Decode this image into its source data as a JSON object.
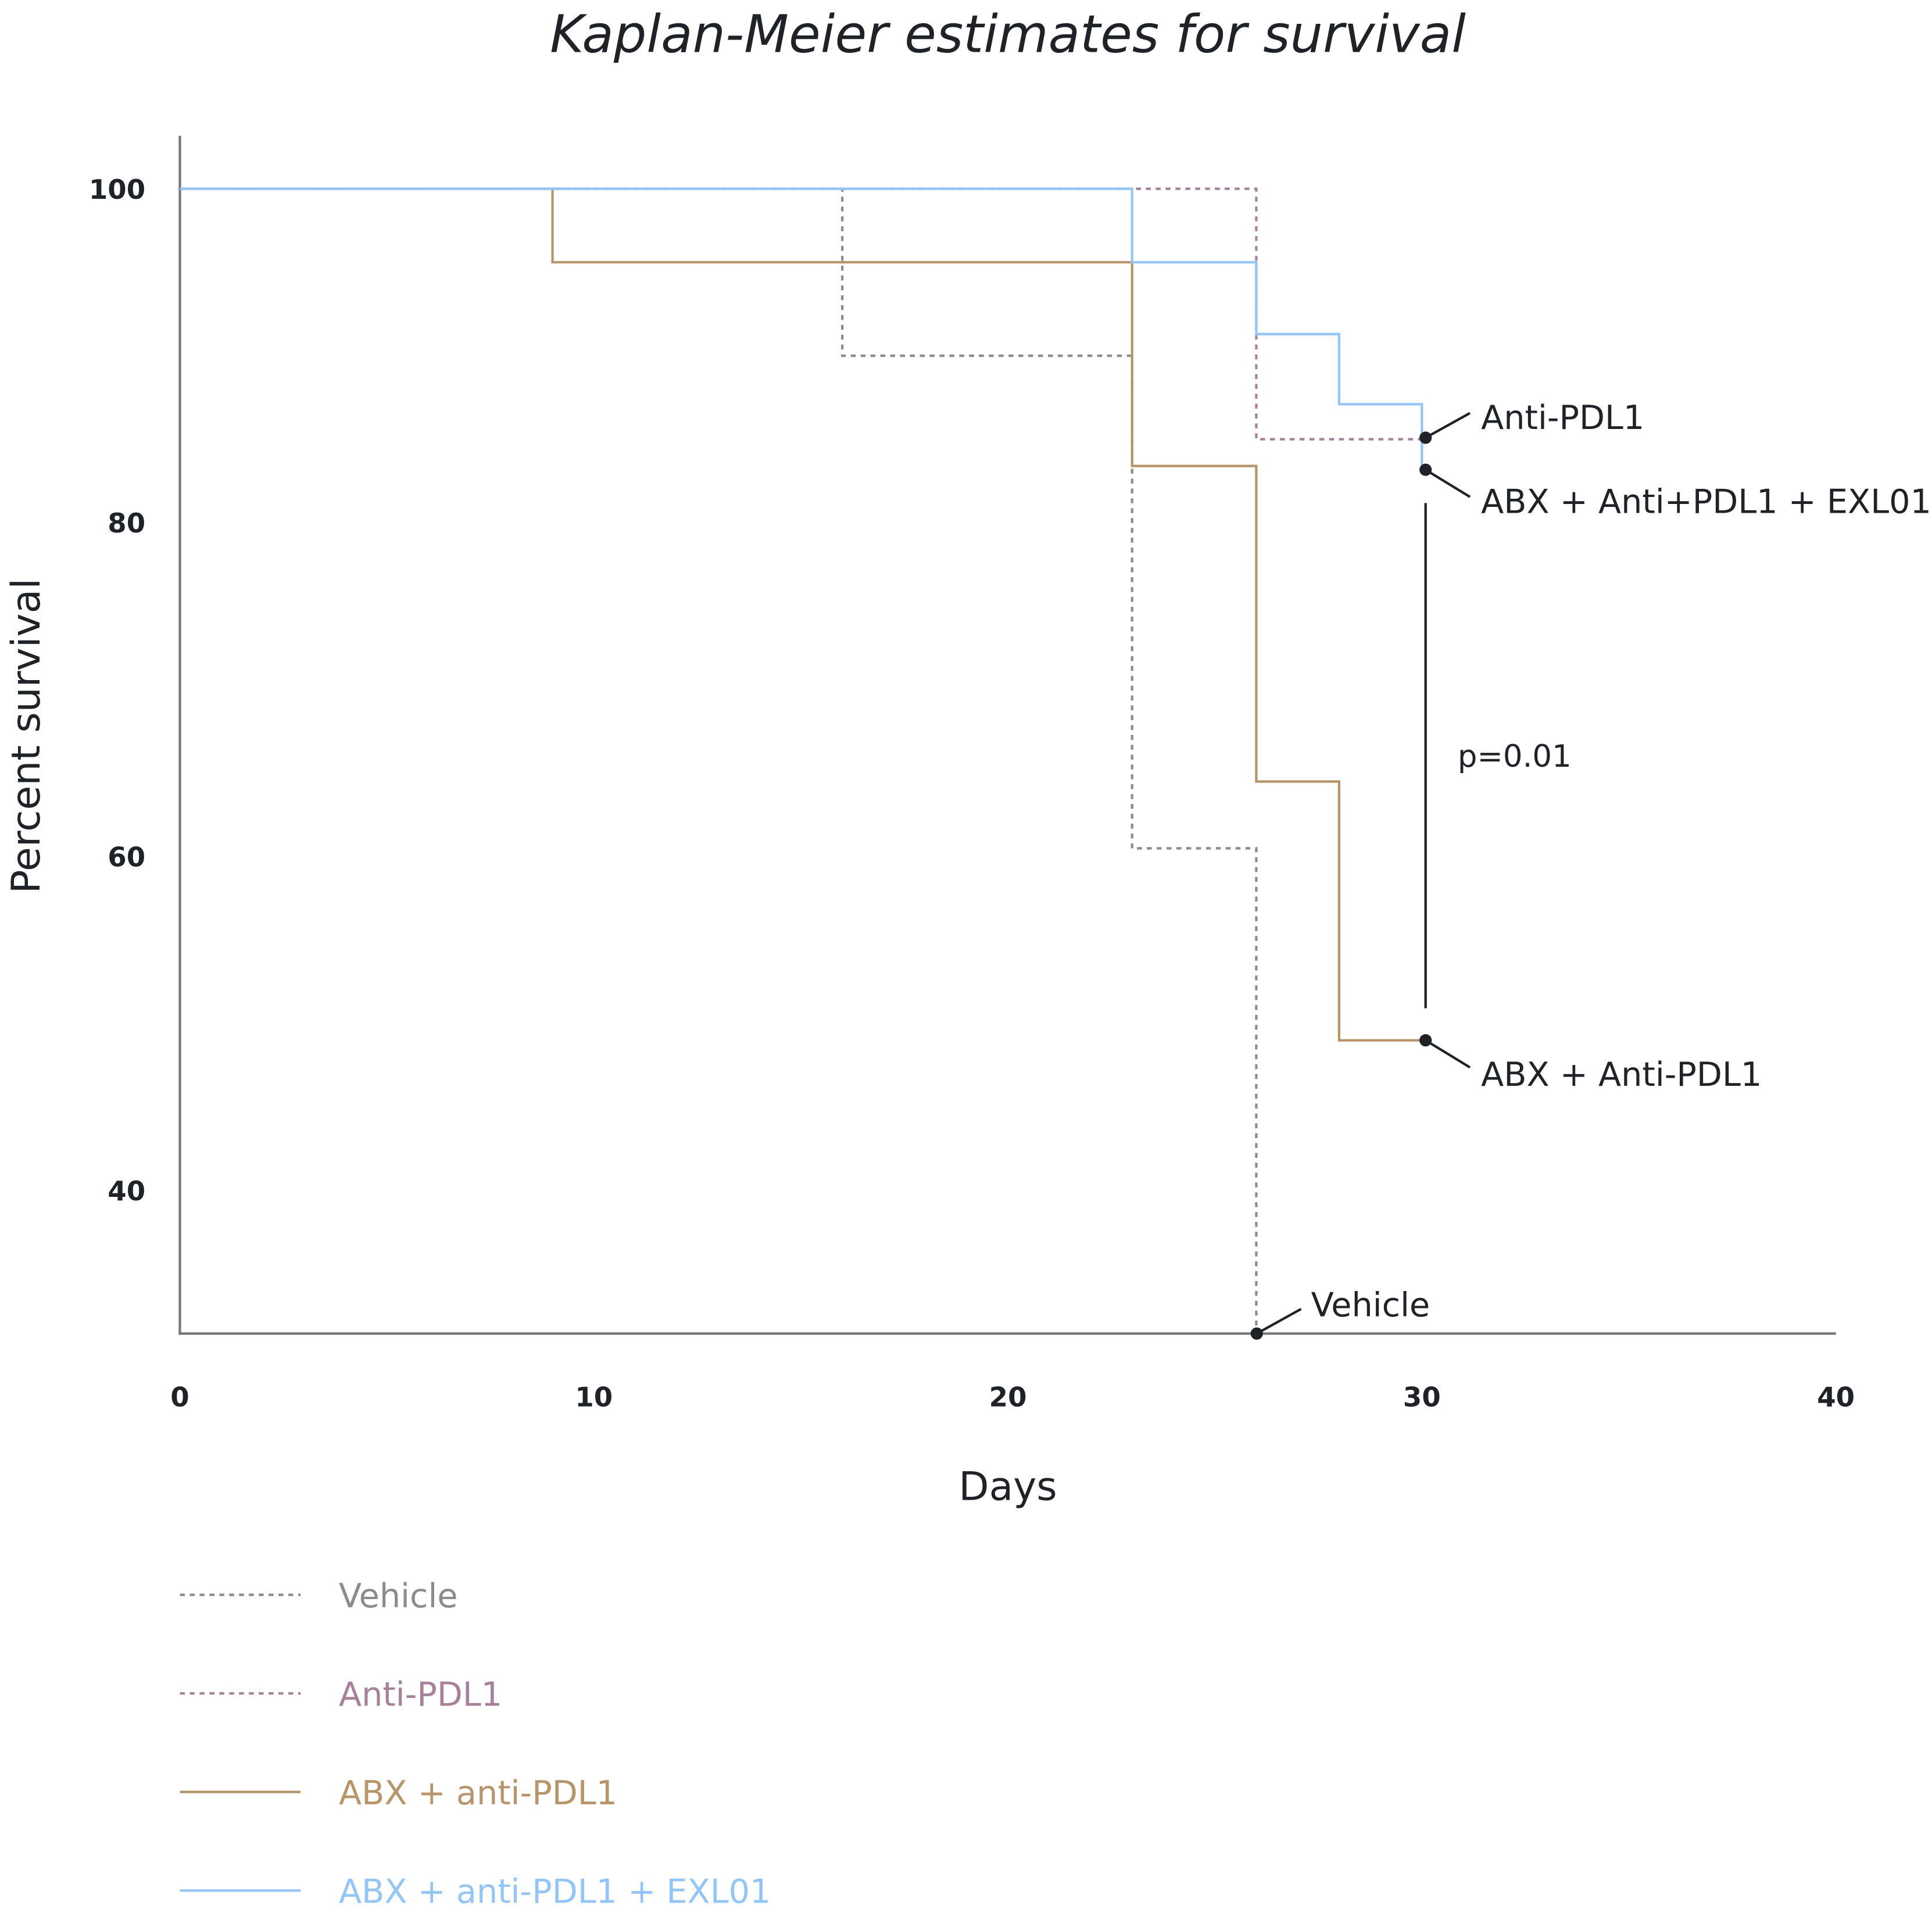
{
  "chart_data": {
    "type": "line",
    "step": true,
    "title": "Kaplan-Meier estimates for survival",
    "xlabel": "Days",
    "ylabel": "Percent survival",
    "xlim": [
      0,
      40
    ],
    "ylim": [
      31.4,
      103
    ],
    "xticks": [
      "0",
      "10",
      "20",
      "30",
      "40"
    ],
    "yticks": [
      "40",
      "60",
      "80",
      "100"
    ],
    "grid": false,
    "legend_position": "bottom-left",
    "series": [
      {
        "name": "Vehicle",
        "color": "#8c8c8c",
        "dashed": true,
        "x": [
          0,
          16,
          23,
          26
        ],
        "y": [
          100,
          90,
          60.5,
          0
        ]
      },
      {
        "name": "Anti-PDL1",
        "color": "#a7809a",
        "dashed": true,
        "x": [
          0,
          26,
          30
        ],
        "y": [
          100,
          85,
          85
        ]
      },
      {
        "name": "ABX + anti-PDL1",
        "color": "#b8946a",
        "dashed": false,
        "x": [
          0,
          9,
          23,
          26,
          28,
          30
        ],
        "y": [
          100,
          95.6,
          83.4,
          64.5,
          49,
          49
        ]
      },
      {
        "name": "ABX + anti-PDL1 + EXL01",
        "color": "#93c5f8",
        "dashed": false,
        "x": [
          0,
          23,
          26,
          28,
          30,
          30
        ],
        "y": [
          100,
          95.6,
          91.3,
          87.1,
          87.1,
          83.3
        ]
      }
    ],
    "annotations": {
      "vehicle": "Vehicle",
      "anti_pdl1": "Anti-PDL1",
      "abx_anti_pdl1_exl01": "ABX + Anti+PDL1 + EXL01",
      "abx_anti_pdl1": "ABX + Anti-PDL1",
      "p_value": "p=0.01"
    }
  }
}
